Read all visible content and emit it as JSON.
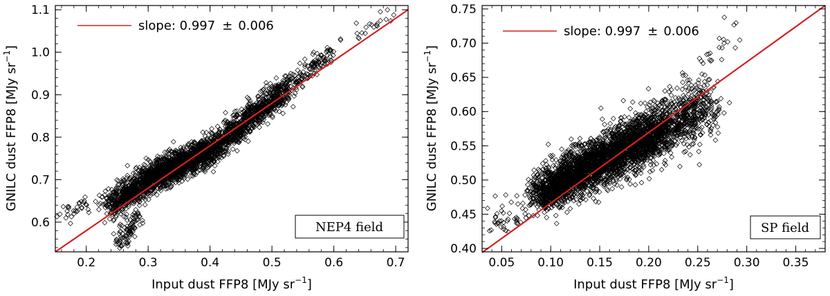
{
  "chart_data": [
    {
      "type": "scatter",
      "name": "left-panel",
      "xlabel": "Input dust FFP8 [MJy sr",
      "ylabel": "GNILC dust FFP8 [MJy sr",
      "unit_exponent": "−1",
      "xlim": [
        0.15,
        0.72
      ],
      "ylim": [
        0.53,
        1.11
      ],
      "xticks": [
        0.2,
        0.3,
        0.4,
        0.5,
        0.6,
        0.7
      ],
      "xtick_labels": [
        "0.2",
        "0.3",
        "0.4",
        "0.5",
        "0.6",
        "0.7"
      ],
      "yticks": [
        0.6,
        0.7,
        0.8,
        0.9,
        1.0,
        1.1
      ],
      "ytick_labels": [
        "0.6",
        "0.7",
        "0.8",
        "0.9",
        "1.0",
        "1.1"
      ],
      "fit_line": {
        "slope": 0.997,
        "points": [
          [
            0.15,
            0.53
          ],
          [
            0.72,
            1.1
          ]
        ],
        "color": "#d62020"
      },
      "legend": {
        "label": "slope: 0.997",
        "pm": "±",
        "error": "0.006",
        "position": "top-left"
      },
      "field_label": "NEP4 field",
      "marker": "diamond",
      "point_cloud": {
        "segments": [
          {
            "x": [
              0.24,
              0.3
            ],
            "y": [
              0.64,
              0.7
            ],
            "n": 550,
            "spread": 0.017
          },
          {
            "x": [
              0.3,
              0.4
            ],
            "y": [
              0.7,
              0.77
            ],
            "n": 1500,
            "spread": 0.016
          },
          {
            "x": [
              0.4,
              0.52
            ],
            "y": [
              0.77,
              0.91
            ],
            "n": 900,
            "spread": 0.015
          },
          {
            "x": [
              0.52,
              0.6
            ],
            "y": [
              0.91,
              1.01
            ],
            "n": 140,
            "spread": 0.012
          },
          {
            "x": [
              0.6,
              0.7
            ],
            "y": [
              1.01,
              1.09
            ],
            "n": 22,
            "spread": 0.01
          },
          {
            "x": [
              0.15,
              0.24
            ],
            "y": [
              0.61,
              0.66
            ],
            "n": 45,
            "spread": 0.012
          },
          {
            "x": [
              0.25,
              0.29
            ],
            "y": [
              0.54,
              0.63
            ],
            "n": 90,
            "spread": 0.012
          }
        ]
      }
    },
    {
      "type": "scatter",
      "name": "right-panel",
      "xlabel": "Input dust FFP8 [MJy sr",
      "ylabel": "GNILC dust FFP8 [MJy sr",
      "unit_exponent": "−1",
      "xlim": [
        0.03,
        0.38
      ],
      "ylim": [
        0.395,
        0.755
      ],
      "xticks": [
        0.05,
        0.1,
        0.15,
        0.2,
        0.25,
        0.3,
        0.35
      ],
      "xtick_labels": [
        "0.05",
        "0.10",
        "0.15",
        "0.20",
        "0.25",
        "0.30",
        "0.35"
      ],
      "yticks": [
        0.4,
        0.45,
        0.5,
        0.55,
        0.6,
        0.65,
        0.7,
        0.75
      ],
      "ytick_labels": [
        "0.40",
        "0.45",
        "0.50",
        "0.55",
        "0.60",
        "0.65",
        "0.70",
        "0.75"
      ],
      "fit_line": {
        "slope": 0.997,
        "points": [
          [
            0.03,
            0.394
          ],
          [
            0.38,
            0.755
          ]
        ],
        "color": "#d62020"
      },
      "legend": {
        "label": "slope: 0.997",
        "pm": "±",
        "error": "0.006",
        "position": "top-left"
      },
      "field_label": "SP field",
      "marker": "diamond",
      "point_cloud": {
        "segments": [
          {
            "x": [
              0.04,
              0.09
            ],
            "y": [
              0.43,
              0.48
            ],
            "n": 60,
            "spread": 0.012
          },
          {
            "x": [
              0.09,
              0.14
            ],
            "y": [
              0.48,
              0.52
            ],
            "n": 1300,
            "spread": 0.016
          },
          {
            "x": [
              0.14,
              0.21
            ],
            "y": [
              0.52,
              0.57
            ],
            "n": 1800,
            "spread": 0.018
          },
          {
            "x": [
              0.21,
              0.26
            ],
            "y": [
              0.57,
              0.61
            ],
            "n": 600,
            "spread": 0.02
          },
          {
            "x": [
              0.24,
              0.29
            ],
            "y": [
              0.62,
              0.72
            ],
            "n": 40,
            "spread": 0.015
          }
        ]
      }
    }
  ]
}
